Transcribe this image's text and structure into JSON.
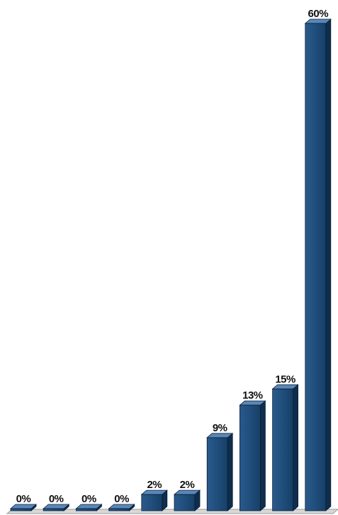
{
  "chart_data": {
    "type": "bar",
    "style": "3d-column",
    "categories": [
      "",
      "",
      "",
      "",
      "",
      "",
      "",
      "",
      "",
      ""
    ],
    "values": [
      0,
      0,
      0,
      0,
      2,
      2,
      9,
      13,
      15,
      60
    ],
    "data_labels": [
      "0%",
      "0%",
      "0%",
      "0%",
      "2%",
      "2%",
      "9%",
      "13%",
      "15%",
      "60%"
    ],
    "value_unit": "%",
    "title": "",
    "xlabel": "",
    "ylabel": "",
    "ylim": [
      0,
      60
    ],
    "grid": false,
    "legend": "none",
    "colors": {
      "bar_front": "#1f4e7c",
      "bar_side": "#0f2d4d",
      "bar_top": "#5a87b8",
      "floor": "#d8d8d8",
      "floor_edge": "#9a9a9a"
    }
  }
}
